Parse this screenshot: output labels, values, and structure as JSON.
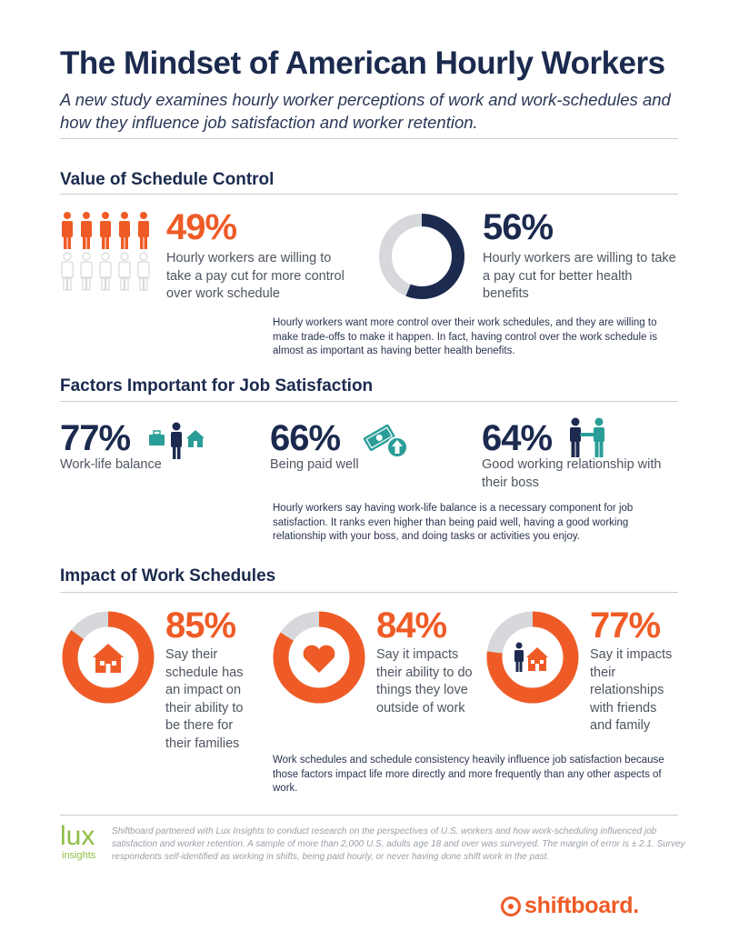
{
  "header": {
    "title": "The Mindset of American Hourly Workers",
    "subtitle": "A new study examines hourly worker perceptions of work and work-schedules and how they influence job satisfaction and worker retention."
  },
  "schedule_control": {
    "heading": "Value of Schedule Control",
    "stat1": {
      "value": "49%",
      "text": "Hourly workers are willing to take a pay cut for more control over work schedule"
    },
    "stat2": {
      "value": "56%",
      "text": "Hourly  workers are willing to take a pay cut for better health benefits"
    },
    "note": "Hourly workers want more control over their work schedules, and they are willing to make trade-offs to make it happen. In fact, having control over the work schedule is almost as important as having better health benefits."
  },
  "job_satisfaction": {
    "heading": "Factors Important for Job Satisfaction",
    "factors": [
      {
        "value": "77%",
        "label": "Work-life balance"
      },
      {
        "value": "66%",
        "label": "Being paid well"
      },
      {
        "value": "64%",
        "label": "Good working relationship with their boss"
      }
    ],
    "note": "Hourly workers say having work-life balance is a necessary component for job satisfaction. It ranks even higher than being paid well, having a good working relationship with your boss, and doing tasks or activities you enjoy."
  },
  "work_schedules": {
    "heading": "Impact of Work Schedules",
    "impacts": [
      {
        "value": "85%",
        "text": "Say their schedule has an impact on their ability to be there for their families",
        "fraction": 0.85
      },
      {
        "value": "84%",
        "text": "Say it impacts their ability to do things they love outside of work",
        "fraction": 0.84
      },
      {
        "value": "77%",
        "text": "Say it impacts their relationships with friends and family",
        "fraction": 0.77
      }
    ],
    "note": "Work schedules and schedule consistency heavily influence job satisfaction because those factors impact life more directly and more frequently than any other aspects of work."
  },
  "footer": {
    "partner_logo": "lux",
    "partner_logo_sub": "insights",
    "disclaimer": "Shiftboard partnered with Lux Insights to conduct research on the perspectives of U.S. workers and how work-scheduling influenced job satisfaction and worker retention. A sample of more than 2,000 U.S. adults age 18 and over was surveyed. The margin of error is ± 2.1. Survey respondents self-identified as working in shifts, being paid hourly, or never having done shift work in the past.",
    "brand": "shiftboard."
  },
  "graphics": {
    "people_shaded_fraction": 0.49,
    "donut_56_fraction": 0.56,
    "colors": {
      "orange": "#ef5b26",
      "navy": "#1b2a4e",
      "teal": "#2a9d98",
      "grey": "#d6d8dc"
    },
    "icons": [
      "person-icon",
      "house-icon",
      "heart-icon",
      "money-icon",
      "handshake-icon",
      "shiftboard-logo-icon"
    ]
  }
}
